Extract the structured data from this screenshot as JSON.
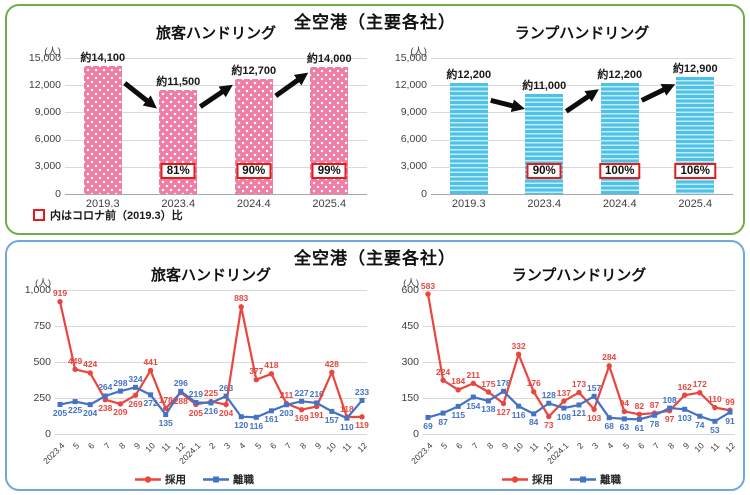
{
  "top_panel": {
    "title": "全空港（主要各社）",
    "note_label": "内はコロナ前（2019.3）比"
  },
  "bottom_panel": {
    "title": "全空港（主要各社）"
  },
  "colors": {
    "pink_bar": "#ef7ea6",
    "pink_bar_dot": "#ffffff",
    "blue_bar": "#4ec1e6",
    "blue_bar_stripe": "#c3ebf8",
    "hire_red": "#e8473f",
    "leave_blue": "#4472c4",
    "panel_green_border": "#70ad47",
    "panel_blue_border": "#6fa8dc",
    "percent_box_red": "#e21b1b",
    "gridline_gray": "#d9d9d9",
    "axis_text": "#404040",
    "arrow_black": "#0d0d0d"
  },
  "chart_data": [
    {
      "id": "passenger-headcount-bar",
      "type": "bar",
      "title": "旅客ハンドリング",
      "unit": "(人)",
      "categories": [
        "2019.3",
        "2023.4",
        "2024.4",
        "2025.4"
      ],
      "values": [
        14100,
        11500,
        12700,
        14000
      ],
      "value_labels": [
        "約14,100",
        "約11,500",
        "約12,700",
        "約14,000"
      ],
      "percent_vs_2019": [
        "",
        "81%",
        "90%",
        "99%"
      ],
      "ylim": [
        0,
        15000
      ],
      "y_ticks": [
        "15,000",
        "12,000",
        "9,000",
        "6,000",
        "3,000",
        "0"
      ],
      "bar_style": "pink-dots",
      "arrows": true
    },
    {
      "id": "ramp-headcount-bar",
      "type": "bar",
      "title": "ランプハンドリング",
      "unit": "(人)",
      "categories": [
        "2019.3",
        "2023.4",
        "2024.4",
        "2025.4"
      ],
      "values": [
        12200,
        11000,
        12200,
        12900
      ],
      "value_labels": [
        "約12,200",
        "約11,000",
        "約12,200",
        "約12,900"
      ],
      "percent_vs_2019": [
        "",
        "90%",
        "100%",
        "106%"
      ],
      "ylim": [
        0,
        15000
      ],
      "y_ticks": [
        "15,000",
        "12,000",
        "9,000",
        "6,000",
        "3,000",
        "0"
      ],
      "bar_style": "blue-stripes",
      "arrows": true
    },
    {
      "id": "passenger-hire-leave-line",
      "type": "line",
      "title": "旅客ハンドリング",
      "unit": "(人)",
      "x": [
        "2023.4",
        "5",
        "6",
        "7",
        "8",
        "9",
        "10",
        "11",
        "12",
        "2024.1",
        "2",
        "3",
        "4",
        "5",
        "6",
        "7",
        "8",
        "9",
        "10",
        "11",
        "12"
      ],
      "ylim": [
        0,
        1000
      ],
      "y_ticks": [
        "1,000",
        "750",
        "500",
        "250",
        "0"
      ],
      "series": [
        {
          "name": "採用",
          "color_key": "hire_red",
          "values": [
            919,
            449,
            424,
            238,
            209,
            269,
            441,
            178,
            288,
            205,
            225,
            204,
            883,
            377,
            418,
            211,
            169,
            191,
            428,
            118,
            119
          ]
        },
        {
          "name": "離職",
          "color_key": "leave_blue",
          "values": [
            205,
            225,
            204,
            264,
            298,
            324,
            272,
            135,
            296,
            219,
            216,
            263,
            120,
            116,
            161,
            203,
            227,
            216,
            157,
            110,
            233
          ]
        }
      ]
    },
    {
      "id": "ramp-hire-leave-line",
      "type": "line",
      "title": "ランプハンドリング",
      "unit": "(人)",
      "x": [
        "2023.4",
        "5",
        "6",
        "7",
        "8",
        "9",
        "10",
        "11",
        "12",
        "2024.1",
        "2",
        "3",
        "4",
        "5",
        "6",
        "7",
        "8",
        "9",
        "10",
        "11",
        "12"
      ],
      "ylim": [
        0,
        600
      ],
      "y_ticks": [
        "600",
        "450",
        "300",
        "150",
        "0"
      ],
      "series": [
        {
          "name": "採用",
          "color_key": "hire_red",
          "values": [
            583,
            224,
            184,
            211,
            175,
            127,
            332,
            176,
            73,
            137,
            173,
            103,
            284,
            94,
            82,
            87,
            97,
            162,
            172,
            110,
            99
          ]
        },
        {
          "name": "離職",
          "color_key": "leave_blue",
          "values": [
            69,
            87,
            115,
            154,
            138,
            178,
            116,
            84,
            128,
            108,
            121,
            157,
            68,
            63,
            61,
            78,
            108,
            103,
            74,
            53,
            91
          ]
        }
      ]
    }
  ]
}
